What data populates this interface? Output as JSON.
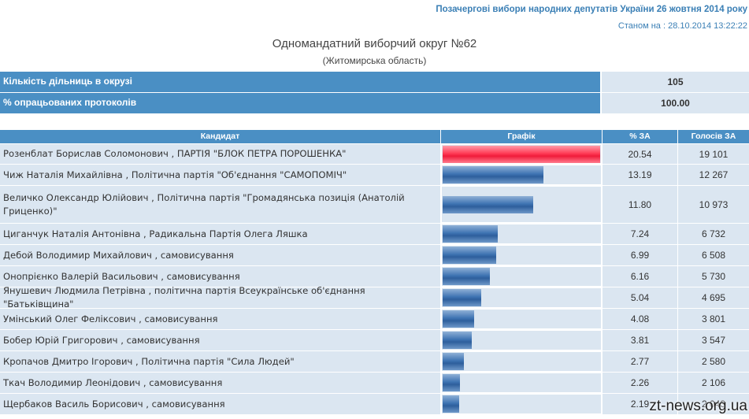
{
  "header": {
    "election_title": "Позачергові вибори народних депутатів України 26 жовтня 2014 року",
    "timestamp": "Станом на : 28.10.2014 13:22:22"
  },
  "district": {
    "title": "Одномандатний виборчий округ №62",
    "region": "(Житомирська область)"
  },
  "summary": [
    {
      "label": "Кількість дільниць в окрузі",
      "value": "105"
    },
    {
      "label": "% опрацьованих протоколів",
      "value": "100.00"
    }
  ],
  "table": {
    "headers": {
      "candidate": "Кандидат",
      "graph": "Графік",
      "pct": "% ЗА",
      "votes": "Голосів ЗА"
    },
    "rows": [
      {
        "name": "Розенблат Борислав Соломонович",
        "party": "ПАРТІЯ \"БЛОК ПЕТРА ПОРОШЕНКА\"",
        "pct": "20.54",
        "pct_value": 20.54,
        "votes": "19 101",
        "height": 26
      },
      {
        "name": "Чиж Наталія Михайлівна",
        "party": "Політична партія \"Об'єднання \"САМОПОМІЧ\"",
        "pct": "13.19",
        "pct_value": 13.19,
        "votes": "12 267",
        "height": 27
      },
      {
        "name": "Величко Олександр Юлійович",
        "party": "Політична партія \"Громадянська позиція (Анатолій Гриценко)\"",
        "pct": "11.80",
        "pct_value": 11.8,
        "votes": "10 973",
        "height": 48
      },
      {
        "name": "Циганчук Наталія Антонівна",
        "party": "Радикальна Партія Олега Ляшка",
        "pct": "7.24",
        "pct_value": 7.24,
        "votes": "6 732",
        "height": 27
      },
      {
        "name": "Дебой Володимир Михайлович",
        "party": "самовисування",
        "pct": "6.99",
        "pct_value": 6.99,
        "votes": "6 508",
        "height": 27
      },
      {
        "name": "Онопрієнко Валерій Васильович",
        "party": "самовисування",
        "pct": "6.16",
        "pct_value": 6.16,
        "votes": "5 730",
        "height": 27
      },
      {
        "name": "Янушевич Людмила Петрівна",
        "party": "політична партія Всеукраїнське об'єднання \"Батьківщина\"",
        "pct": "5.04",
        "pct_value": 5.04,
        "votes": "4 695",
        "height": 27
      },
      {
        "name": "Умінський Олег Феліксович",
        "party": "самовисування",
        "pct": "4.08",
        "pct_value": 4.08,
        "votes": "3 801",
        "height": 27
      },
      {
        "name": "Бобер Юрій Григорович",
        "party": "самовисування",
        "pct": "3.81",
        "pct_value": 3.81,
        "votes": "3 547",
        "height": 27
      },
      {
        "name": "Кропачов Дмитро Ігорович",
        "party": "Політична партія \"Сила Людей\"",
        "pct": "2.77",
        "pct_value": 2.77,
        "votes": "2 580",
        "height": 27
      },
      {
        "name": "Ткач Володимир Леонідович",
        "party": "самовисування",
        "pct": "2.26",
        "pct_value": 2.26,
        "votes": "2 106",
        "height": 27
      },
      {
        "name": "Щербаков Василь Борисович",
        "party": "самовисування",
        "pct": "2.19",
        "pct_value": 2.19,
        "votes": "2 043",
        "height": 27
      }
    ]
  },
  "colors": {
    "header_blue": "#4a8fc4",
    "row_bg": "#dbe6f1",
    "leader_bar": "#f01c3a",
    "bar": "#3e73b2"
  },
  "watermark": "zt-news.org.ua"
}
